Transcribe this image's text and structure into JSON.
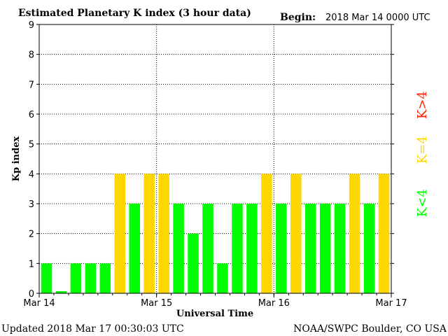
{
  "header": {
    "title": "Estimated Planetary K index (3 hour data)",
    "begin_label": "Begin:",
    "begin_value": "2018 Mar 14 0000 UTC"
  },
  "footer": {
    "updated": "Updated 2018 Mar 17 00:30:03 UTC",
    "source": "NOAA/SWPC Boulder, CO USA"
  },
  "legend": {
    "above": "K>4",
    "equal": "K=4",
    "below": "K<4"
  },
  "colors": {
    "below": "#00ff00",
    "equal": "#ffd700",
    "above": "#ff2200",
    "grid": "#000000"
  },
  "chart_data": {
    "type": "bar",
    "title": "Estimated Planetary K index (3 hour data)",
    "xlabel": "Universal Time",
    "ylabel": "Kp index",
    "ylim": [
      0,
      9
    ],
    "yticks": [
      "0",
      "1",
      "2",
      "3",
      "4",
      "5",
      "6",
      "7",
      "8",
      "9"
    ],
    "xticks": [
      "Mar 14",
      "Mar 15",
      "Mar 16",
      "Mar 17"
    ],
    "grid": true,
    "interval_hours": 3,
    "values": [
      1,
      0.07,
      1,
      1,
      1,
      4,
      3,
      4,
      4,
      3,
      2,
      3,
      1,
      3,
      3,
      4,
      3,
      4,
      3,
      3,
      3,
      4,
      3,
      4
    ]
  }
}
